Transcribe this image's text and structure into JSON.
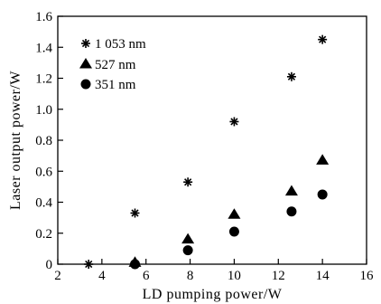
{
  "chart_data": {
    "type": "scatter",
    "xlabel": "LD pumping power/W",
    "ylabel": "Laser output power/W",
    "xlim": [
      2,
      16
    ],
    "ylim": [
      0,
      1.6
    ],
    "x_ticks": [
      "2",
      "4",
      "6",
      "8",
      "10",
      "12",
      "14",
      "16"
    ],
    "y_ticks": [
      "0",
      "0.2",
      "0.4",
      "0.6",
      "0.8",
      "1.0",
      "1.2",
      "1.4",
      "1.6"
    ],
    "grid": false,
    "legend_position": "top-left",
    "series": [
      {
        "name": "1 053 nm",
        "marker": "asterisk",
        "points": [
          {
            "x": 3.4,
            "y": 0.0
          },
          {
            "x": 5.5,
            "y": 0.33
          },
          {
            "x": 7.9,
            "y": 0.53
          },
          {
            "x": 10.0,
            "y": 0.92
          },
          {
            "x": 12.6,
            "y": 1.21
          },
          {
            "x": 14.0,
            "y": 1.45
          }
        ]
      },
      {
        "name": "527 nm",
        "marker": "triangle",
        "points": [
          {
            "x": 5.5,
            "y": 0.01
          },
          {
            "x": 7.9,
            "y": 0.16
          },
          {
            "x": 10.0,
            "y": 0.32
          },
          {
            "x": 12.6,
            "y": 0.47
          },
          {
            "x": 14.0,
            "y": 0.67
          }
        ]
      },
      {
        "name": "351 nm",
        "marker": "circle",
        "points": [
          {
            "x": 5.5,
            "y": 0.0
          },
          {
            "x": 7.9,
            "y": 0.09
          },
          {
            "x": 10.0,
            "y": 0.21
          },
          {
            "x": 12.6,
            "y": 0.34
          },
          {
            "x": 14.0,
            "y": 0.45
          }
        ]
      }
    ]
  }
}
